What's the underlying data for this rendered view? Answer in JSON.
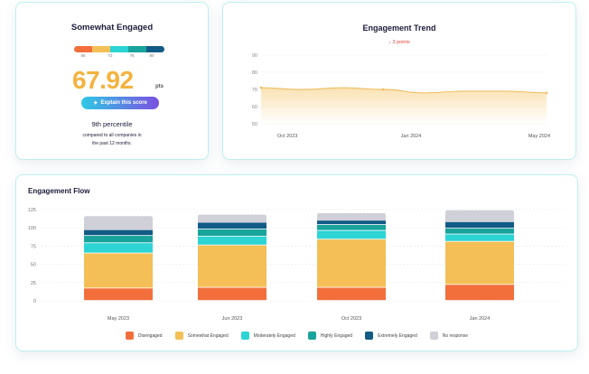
{
  "score_card": {
    "title": "Somewhat Engaged",
    "scale_ticks": [
      "56",
      "72",
      "76",
      "80"
    ],
    "scale_colors": [
      "#f26f3c",
      "#f4bf56",
      "#2dd4d4",
      "#18a39b",
      "#115b86"
    ],
    "score": "67.92",
    "unit": "pts",
    "explain_label": "Explain this score",
    "percentile": "9th percentile",
    "percentile_desc_line1": "compared to all companies in",
    "percentile_desc_line2": "the past 12 months."
  },
  "trend_card": {
    "title": "Engagement Trend",
    "delta_arrow": "↓",
    "delta_text": "3 points",
    "y_ticks": [
      "90",
      "80",
      "70",
      "60",
      "50"
    ],
    "x_labels": [
      "Oct 2023",
      "Jan 2024",
      "May 2024"
    ]
  },
  "flow_card": {
    "title": "Engagement Flow",
    "y_ticks": [
      "125",
      "100",
      "75",
      "50",
      "25",
      "0"
    ],
    "legend": [
      {
        "label": "Disengaged",
        "color": "#f26f3c"
      },
      {
        "label": "Somewhat Engaged",
        "color": "#f4bf56"
      },
      {
        "label": "Moderately Engaged",
        "color": "#2dd4d4"
      },
      {
        "label": "Highly Engaged",
        "color": "#18a39b"
      },
      {
        "label": "Extremely Engaged",
        "color": "#115b86"
      },
      {
        "label": "No response",
        "color": "#cfd0d8"
      }
    ]
  },
  "chart_data": [
    {
      "type": "area",
      "title": "Engagement Trend",
      "x": [
        "Oct 2023",
        "Nov 2023",
        "Dec 2023",
        "Jan 2024",
        "Feb 2024",
        "Mar 2024",
        "Apr 2024",
        "May 2024"
      ],
      "values": [
        71,
        70,
        71,
        70,
        68,
        69,
        69,
        68
      ],
      "ylim": [
        50,
        90
      ],
      "y_ticks": [
        50,
        60,
        70,
        80,
        90
      ],
      "x_tick_labels": [
        "Oct 2023",
        "Jan 2024",
        "May 2024"
      ],
      "color": "#f4bf56"
    },
    {
      "type": "bar",
      "stacked": true,
      "title": "Engagement Flow",
      "categories": [
        "May 2023",
        "Jun 2023",
        "Oct 2023",
        "Jan 2024"
      ],
      "ylim": [
        0,
        125
      ],
      "y_ticks": [
        0,
        25,
        50,
        75,
        100,
        125
      ],
      "series": [
        {
          "name": "Disengaged",
          "color": "#f26f3c",
          "values": [
            17,
            18,
            18,
            22
          ]
        },
        {
          "name": "Somewhat Engaged",
          "color": "#f4bf56",
          "values": [
            48,
            58,
            66,
            59
          ]
        },
        {
          "name": "Moderately Engaged",
          "color": "#2dd4d4",
          "values": [
            14,
            12,
            12,
            10
          ]
        },
        {
          "name": "Highly Engaged",
          "color": "#18a39b",
          "values": [
            10,
            10,
            8,
            8
          ]
        },
        {
          "name": "Extremely Engaged",
          "color": "#115b86",
          "values": [
            8,
            9,
            6,
            9
          ]
        },
        {
          "name": "No response",
          "color": "#cfd0d8",
          "values": [
            19,
            11,
            10,
            16
          ]
        }
      ]
    }
  ]
}
